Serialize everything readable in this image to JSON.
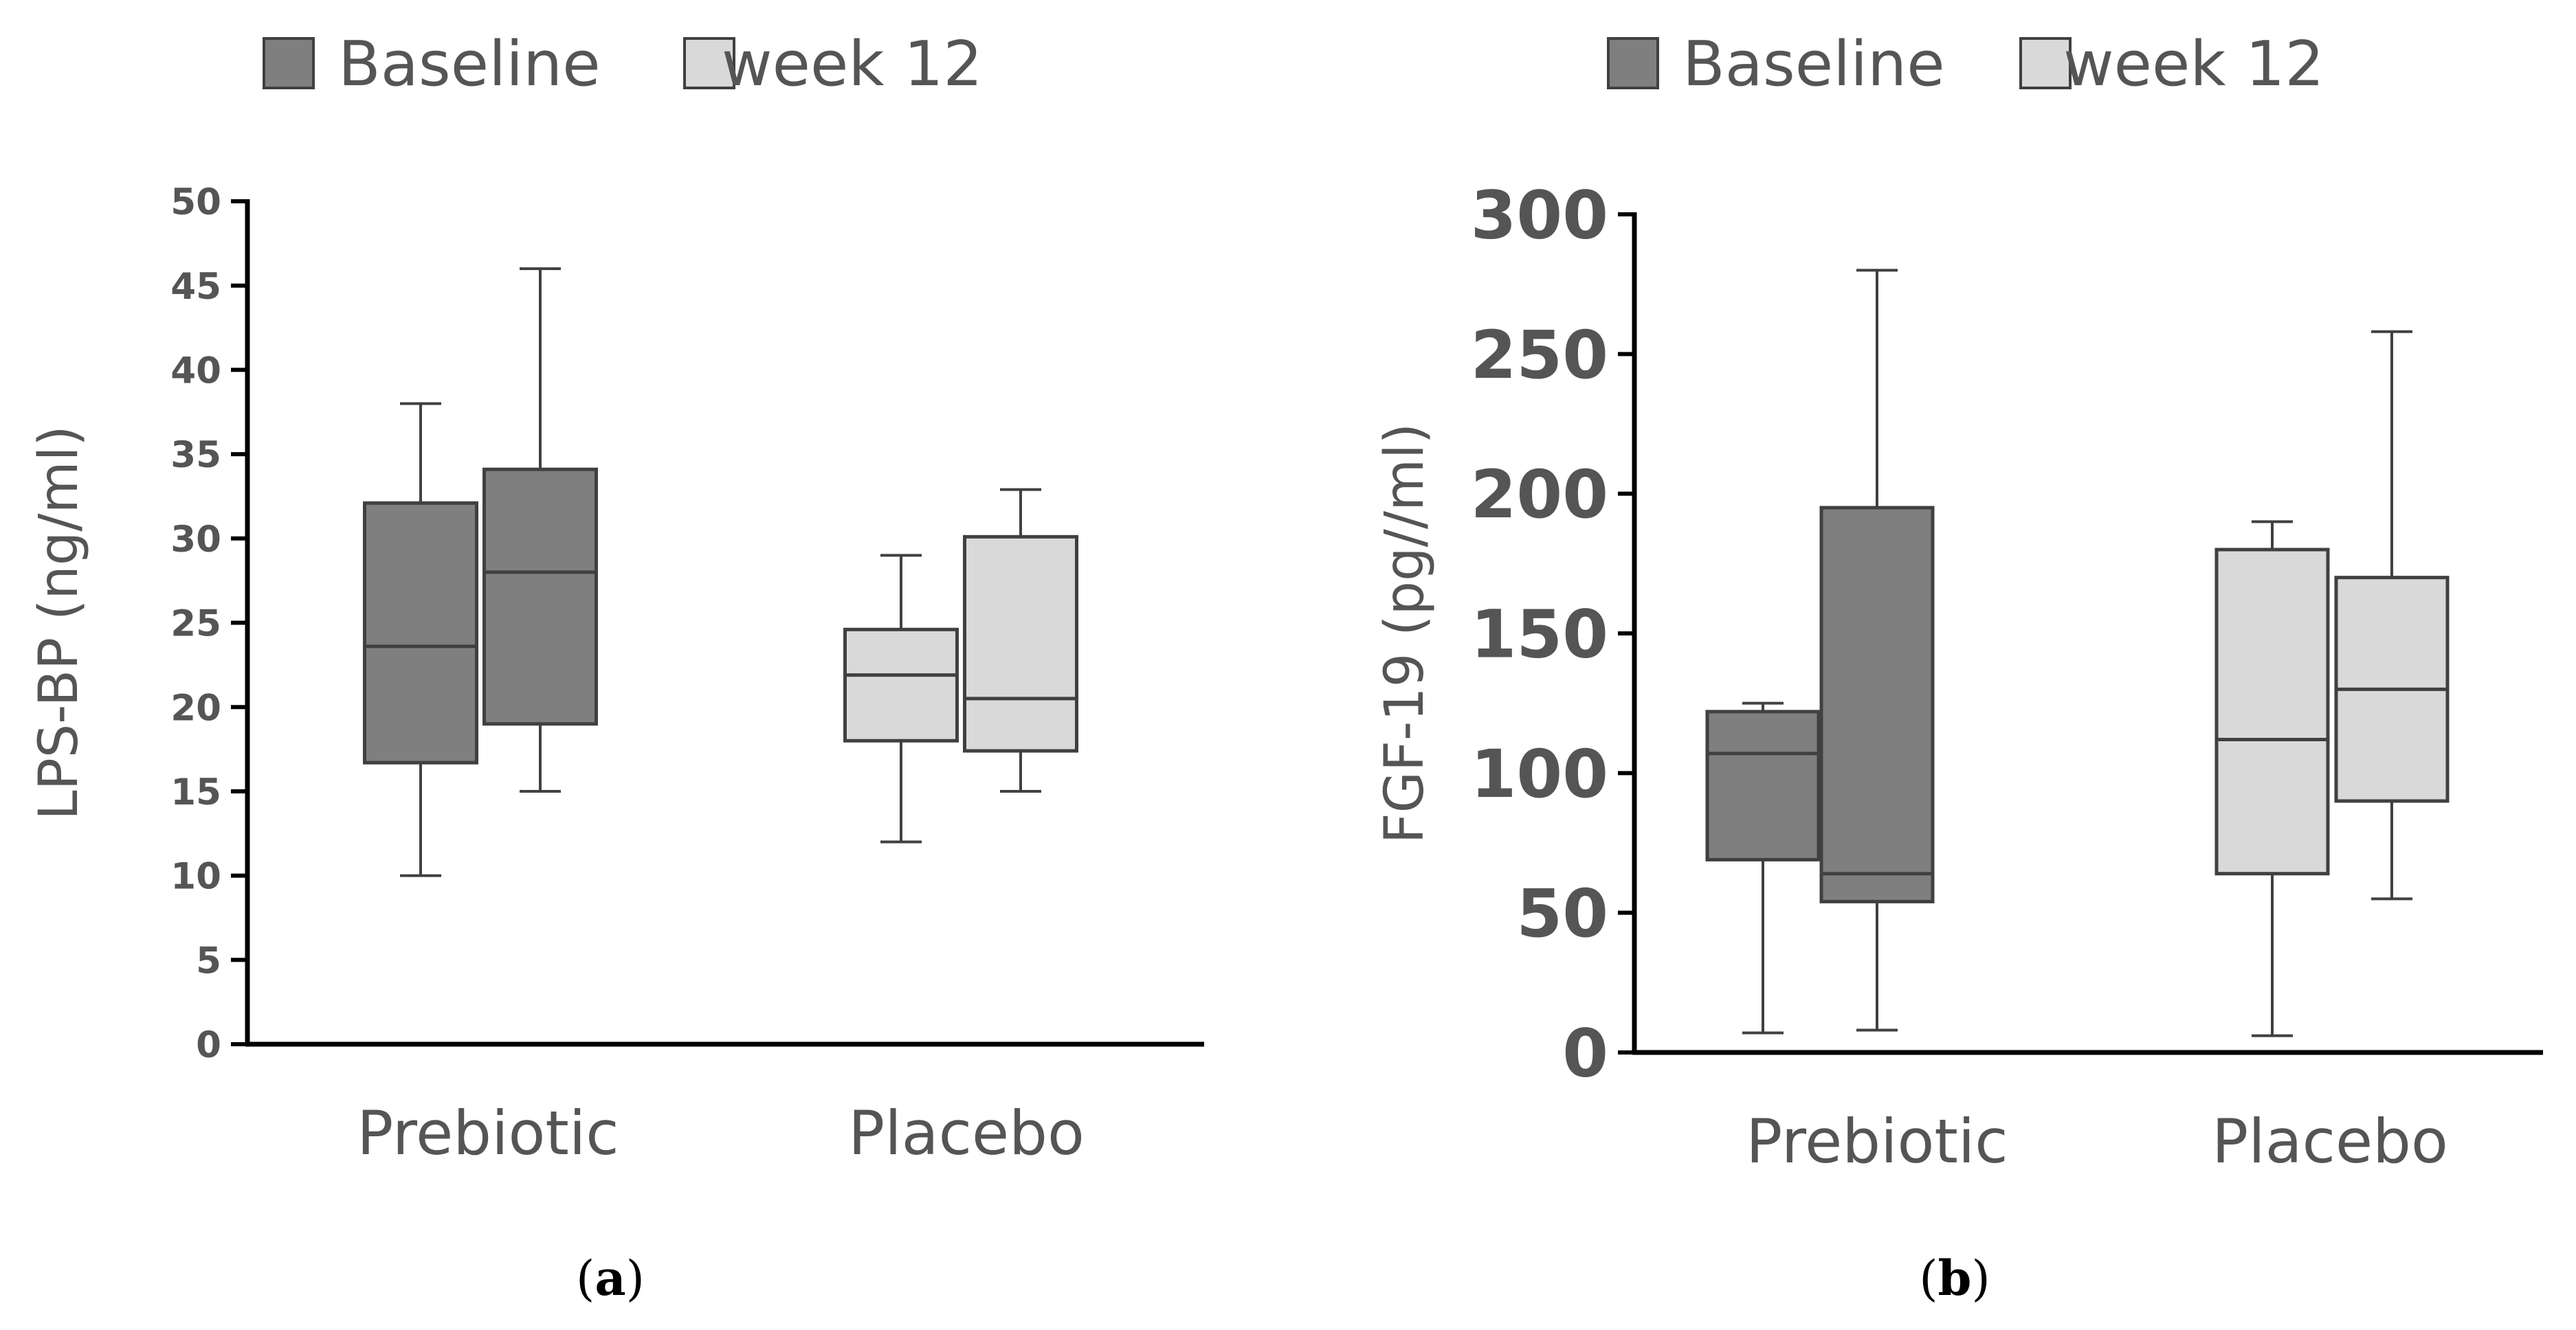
{
  "colors": {
    "baseline": "#7f7f7f",
    "week12": "#d9d9d9",
    "stroke": "#404040",
    "text": "#595959"
  },
  "chart_data": [
    {
      "type": "boxplot",
      "panel_label": "a",
      "ylabel": "LPS-BP (ng/ml)",
      "ylim": [
        0,
        50
      ],
      "yticks": [
        0,
        5,
        10,
        15,
        20,
        25,
        30,
        35,
        40,
        45,
        50
      ],
      "categories": [
        "Prebiotic",
        "Placebo"
      ],
      "legend": [
        "Baseline",
        "week 12"
      ],
      "legend_position": "top",
      "series": [
        {
          "name": "Baseline",
          "boxes": [
            {
              "min": 10,
              "q1": 16.7,
              "median": 23.6,
              "q3": 32.1,
              "max": 38
            },
            {
              "min": 15,
              "q1": 19,
              "median": 28,
              "q3": 34.1,
              "max": 46
            }
          ]
        },
        {
          "name": "week 12",
          "boxes": [
            {
              "min": 12,
              "q1": 18,
              "median": 21.9,
              "q3": 24.6,
              "max": 29
            },
            {
              "min": 15,
              "q1": 17.4,
              "median": 20.5,
              "q3": 30.1,
              "max": 32.9
            }
          ]
        }
      ]
    },
    {
      "type": "boxplot",
      "panel_label": "b",
      "ylabel": "FGF-19 (pg//ml)",
      "ylim": [
        0,
        300
      ],
      "yticks": [
        0,
        50,
        100,
        150,
        200,
        250,
        300
      ],
      "categories": [
        "Prebiotic",
        "Placebo"
      ],
      "legend": [
        "Baseline",
        "week 12"
      ],
      "legend_position": "top",
      "series": [
        {
          "name": "Baseline",
          "boxes": [
            {
              "min": 7,
              "q1": 69,
              "median": 107,
              "q3": 122,
              "max": 125
            },
            {
              "min": 8,
              "q1": 54,
              "median": 64,
              "q3": 195,
              "max": 280
            }
          ]
        },
        {
          "name": "week 12",
          "boxes": [
            {
              "min": 6,
              "q1": 64,
              "median": 112,
              "q3": 180,
              "max": 190
            },
            {
              "min": 55,
              "q1": 90,
              "median": 130,
              "q3": 170,
              "max": 258
            }
          ]
        }
      ]
    }
  ]
}
